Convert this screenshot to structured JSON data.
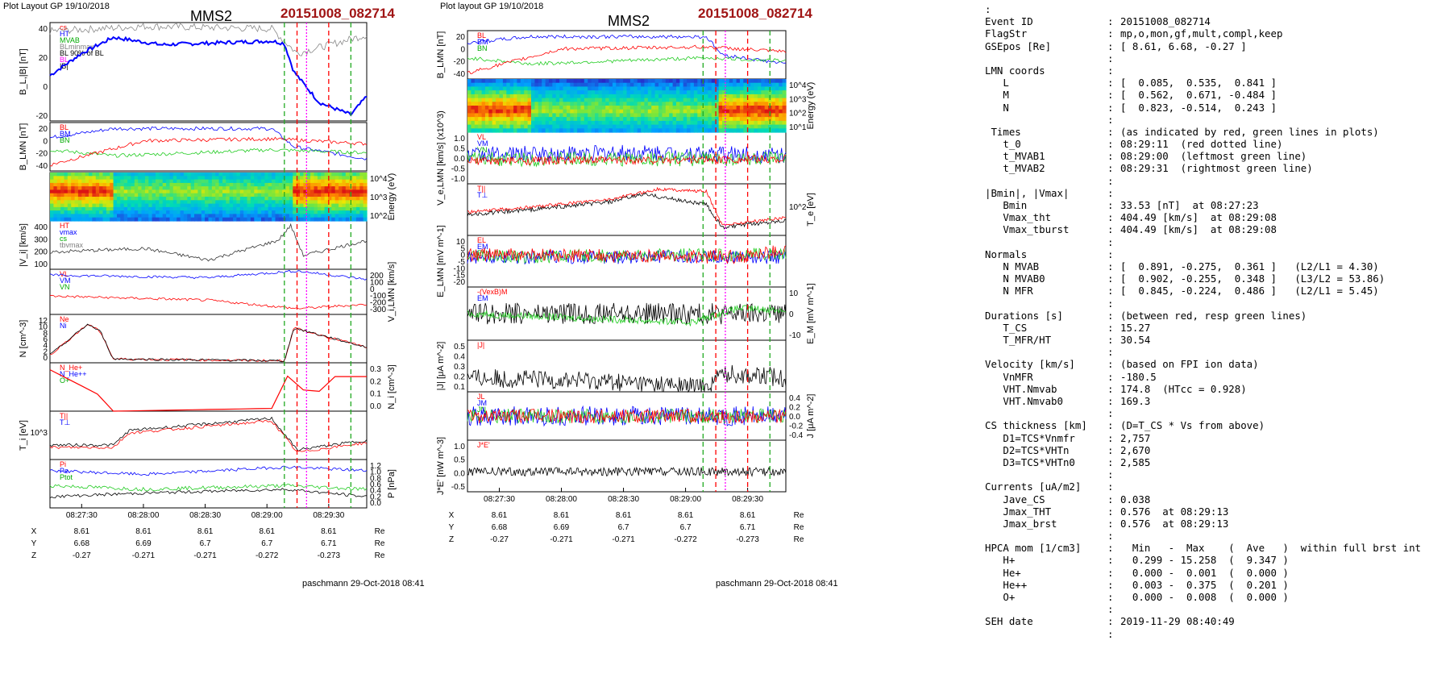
{
  "left": {
    "layout_label": "Plot Layout GP 19/10/2018",
    "title": "MMS2",
    "event": "20151008_082714",
    "footer": "paschmann 29-Oct-2018 08:41",
    "time_ticks": [
      "08:27:30",
      "08:28:00",
      "08:28:30",
      "08:29:00",
      "08:29:30"
    ],
    "panels": [
      {
        "id": "bl",
        "ylabel": "B_L,|B| [nT]",
        "yticks": [
          "40",
          "20",
          "0",
          "-20"
        ],
        "legend": [
          "cs",
          "HT",
          "MVAB",
          "BLminmax",
          "BL 90% of BL",
          "BL",
          "|B|"
        ]
      },
      {
        "id": "blmn",
        "ylabel": "B_LMN [nT]",
        "yticks": [
          "20",
          "0",
          "-20",
          "-40"
        ],
        "legend": [
          "BL",
          "BM",
          "BN"
        ]
      },
      {
        "id": "ispec",
        "ylabel": "Energy (eV)",
        "yticks": [
          "10^4",
          "10^3",
          "10^2"
        ]
      },
      {
        "id": "vi",
        "ylabel": "|V_i| [km/s]",
        "yticks": [
          "400",
          "300",
          "200",
          "100"
        ],
        "legend": [
          "HT",
          "vmax",
          "cs",
          "tbvmax"
        ]
      },
      {
        "id": "vilmn",
        "ylabel": "V_i,LMN [km/s]",
        "yticks": [
          "200",
          "100",
          "0",
          "-100",
          "-200",
          "-300"
        ],
        "legend": [
          "VL",
          "VM",
          "VN"
        ]
      },
      {
        "id": "n",
        "ylabel": "N [cm^-3]",
        "yticks": [
          "12",
          "10",
          "8",
          "6",
          "4",
          "2",
          "0"
        ],
        "legend": [
          "Ne",
          "Ni"
        ]
      },
      {
        "id": "ni",
        "ylabel": "N_i [cm^-3]",
        "yticks": [
          "0.3",
          "0.2",
          "0.1",
          "0.0"
        ],
        "legend": [
          "N_He+",
          "N_He++",
          "O+"
        ]
      },
      {
        "id": "ti",
        "ylabel": "T_i [eV]",
        "yticks": [
          "10^3"
        ],
        "legend": [
          "T||",
          "T⊥"
        ]
      },
      {
        "id": "p",
        "ylabel": "P [nPa]",
        "yticks": [
          "1.2",
          "1.0",
          "0.8",
          "0.6",
          "0.4",
          "0.2",
          "0.0"
        ],
        "legend": [
          "Pi",
          "Pe",
          "Ptot"
        ]
      }
    ],
    "pos_rows": [
      {
        "label": "X",
        "values": [
          "8.61",
          "8.61",
          "8.61",
          "8.61",
          "8.61"
        ],
        "unit": "Re"
      },
      {
        "label": "Y",
        "values": [
          "6.68",
          "6.69",
          "6.7",
          "6.7",
          "6.71"
        ],
        "unit": "Re"
      },
      {
        "label": "Z",
        "values": [
          "-0.27",
          "-0.271",
          "-0.271",
          "-0.272",
          "-0.273"
        ],
        "unit": "Re"
      }
    ]
  },
  "middle": {
    "layout_label": "Plot layout GP 19/10/2018",
    "title": "MMS2",
    "event": "20151008_082714",
    "footer": "paschmann 29-Oct-2018 08:41",
    "time_ticks": [
      "08:27:30",
      "08:28:00",
      "08:28:30",
      "08:29:00",
      "08:29:30"
    ],
    "panels": [
      {
        "id": "blmn",
        "ylabel": "B_LMN [nT]",
        "yticks": [
          "20",
          "0",
          "-20",
          "-40"
        ],
        "legend": [
          "BL",
          "BM",
          "BN"
        ]
      },
      {
        "id": "espec",
        "ylabel": "Energy (eV)",
        "yticks": [
          "10^4",
          "10^3",
          "10^2",
          "10^1"
        ]
      },
      {
        "id": "velmn",
        "ylabel": "V_e,LMN [km/s] (x10^3)",
        "yticks": [
          "1.0",
          "0.5",
          "0.0",
          "-0.5",
          "-1.0"
        ],
        "legend": [
          "VL",
          "VM",
          "VN"
        ]
      },
      {
        "id": "te",
        "ylabel": "T_e [eV]",
        "yticks": [
          "10^2"
        ],
        "legend": [
          "T||",
          "T⊥"
        ]
      },
      {
        "id": "elmn",
        "ylabel": "E_LMN [mV m^-1]",
        "yticks": [
          "10",
          "5",
          "0",
          "-5",
          "-10",
          "-15",
          "-20"
        ],
        "legend": [
          "EL",
          "EM",
          "EN"
        ]
      },
      {
        "id": "em",
        "ylabel": "E_M [mV m^-1]",
        "yticks": [
          "10",
          "0",
          "-10"
        ],
        "legend": [
          "-(VexB)M",
          "EM"
        ]
      },
      {
        "id": "j",
        "ylabel": "|J| [μA m^-2]",
        "yticks": [
          "0.5",
          "0.4",
          "0.3",
          "0.2",
          "0.1"
        ],
        "legend": [
          "|J|"
        ]
      },
      {
        "id": "jlmn",
        "ylabel": "J [μA m^-2]",
        "yticks": [
          "0.4",
          "0.2",
          "0.0",
          "-0.2",
          "-0.4"
        ],
        "legend": [
          "JL",
          "JM",
          "JN"
        ]
      },
      {
        "id": "je",
        "ylabel": "J*E' [nW m^-3]",
        "yticks": [
          "1.0",
          "0.5",
          "0.0",
          "-0.5"
        ],
        "legend": [
          "J*E'"
        ]
      }
    ],
    "pos_rows": [
      {
        "label": "X",
        "values": [
          "8.61",
          "8.61",
          "8.61",
          "8.61",
          "8.61"
        ],
        "unit": "Re"
      },
      {
        "label": "Y",
        "values": [
          "6.68",
          "6.69",
          "6.7",
          "6.7",
          "6.71"
        ],
        "unit": "Re"
      },
      {
        "label": "Z",
        "values": [
          "-0.27",
          "-0.271",
          "-0.271",
          "-0.272",
          "-0.273"
        ],
        "unit": "Re"
      }
    ]
  },
  "info_lines": [
    {
      "l": ":",
      "v": ""
    },
    {
      "l": "Event ID",
      "v": "20151008_082714"
    },
    {
      "l": "FlagStr",
      "v": "mp,o,mon,gf,mult,compl,keep"
    },
    {
      "l": "GSEpos [Re]",
      "v": "[ 8.61, 6.68, -0.27 ]"
    },
    {
      "l": "",
      "v": ""
    },
    {
      "l": "LMN coords",
      "v": ""
    },
    {
      "l": "   L",
      "v": "[  0.085,  0.535,  0.841 ]"
    },
    {
      "l": "   M",
      "v": "[  0.562,  0.671, -0.484 ]"
    },
    {
      "l": "   N",
      "v": "[  0.823, -0.514,  0.243 ]"
    },
    {
      "l": "",
      "v": ""
    },
    {
      "l": " Times",
      "v": "(as indicated by red, green lines in plots)"
    },
    {
      "l": "   t_0",
      "v": "08:29:11  (red dotted line)"
    },
    {
      "l": "   t_MVAB1",
      "v": "08:29:00  (leftmost green line)"
    },
    {
      "l": "   t_MVAB2",
      "v": "08:29:31  (rightmost green line)"
    },
    {
      "l": "",
      "v": ""
    },
    {
      "l": "|Bmin|, |Vmax|",
      "v": ""
    },
    {
      "l": "   Bmin",
      "v": "33.53 [nT]  at 08:27:23"
    },
    {
      "l": "   Vmax_tht",
      "v": "404.49 [km/s]  at 08:29:08"
    },
    {
      "l": "   Vmax_tburst",
      "v": "404.49 [km/s]  at 08:29:08"
    },
    {
      "l": "",
      "v": ""
    },
    {
      "l": "Normals",
      "v": ""
    },
    {
      "l": "   N MVAB",
      "v": "[  0.891, -0.275,  0.361 ]   (L2/L1 = 4.30)"
    },
    {
      "l": "   N MVAB0",
      "v": "[  0.902, -0.255,  0.348 ]   (L3/L2 = 53.86)"
    },
    {
      "l": "   N MFR",
      "v": "[  0.845, -0.224,  0.486 ]   (L2/L1 = 5.45)"
    },
    {
      "l": "",
      "v": ""
    },
    {
      "l": "Durations [s]",
      "v": "(between red, resp green lines)"
    },
    {
      "l": "   T_CS",
      "v": "15.27"
    },
    {
      "l": "   T_MFR/HT",
      "v": "30.54"
    },
    {
      "l": "",
      "v": ""
    },
    {
      "l": "Velocity [km/s]",
      "v": "(based on FPI ion data)"
    },
    {
      "l": "   VnMFR",
      "v": "-180.5"
    },
    {
      "l": "   VHT.Nmvab",
      "v": "174.8  (HTcc = 0.928)"
    },
    {
      "l": "   VHT.Nmvab0",
      "v": "169.3"
    },
    {
      "l": "",
      "v": ""
    },
    {
      "l": "CS thickness [km]",
      "v": "(D=T_CS * Vs from above)"
    },
    {
      "l": "   D1=TCS*Vnmfr",
      "v": "2,757"
    },
    {
      "l": "   D2=TCS*VHTn",
      "v": "2,670"
    },
    {
      "l": "   D3=TCS*VHTn0",
      "v": "2,585"
    },
    {
      "l": "",
      "v": ""
    },
    {
      "l": "Currents [uA/m2]",
      "v": ""
    },
    {
      "l": "   Jave_CS",
      "v": "0.038"
    },
    {
      "l": "   Jmax_THT",
      "v": "0.576  at 08:29:13"
    },
    {
      "l": "   Jmax_brst",
      "v": "0.576  at 08:29:13"
    },
    {
      "l": "",
      "v": ""
    },
    {
      "l": "HPCA mom [1/cm3]",
      "v": "  Min   -  Max    (  Ave   )  within full brst int"
    },
    {
      "l": "   H+",
      "v": "  0.299 - 15.258  (  9.347 )"
    },
    {
      "l": "   He+",
      "v": "  0.000 -  0.001  (  0.000 )"
    },
    {
      "l": "   He++",
      "v": "  0.003 -  0.375  (  0.201 )"
    },
    {
      "l": "   O+",
      "v": "  0.000 -  0.008  (  0.000 )"
    },
    {
      "l": "",
      "v": ""
    },
    {
      "l": "SEH date",
      "v": "2019-11-29 08:40:49"
    },
    {
      "l": "",
      "v": ""
    }
  ],
  "chart_data": [
    {
      "type": "line",
      "panel": "left-bl",
      "title": "MMS2",
      "x_range": [
        "08:27:14",
        "08:29:45"
      ],
      "series": [
        {
          "name": "BL",
          "color": "#0000ff",
          "approx": [
            [
              0,
              2
            ],
            [
              0.1,
              20
            ],
            [
              0.2,
              33
            ],
            [
              0.35,
              27
            ],
            [
              0.7,
              30
            ],
            [
              0.74,
              28
            ],
            [
              0.77,
              5
            ],
            [
              0.85,
              -20
            ],
            [
              0.95,
              -30
            ],
            [
              1,
              -15
            ]
          ]
        },
        {
          "name": "|B|",
          "color": "#808080",
          "approx": [
            [
              0,
              38
            ],
            [
              0.3,
              42
            ],
            [
              0.7,
              40
            ],
            [
              0.78,
              20
            ],
            [
              1,
              35
            ]
          ]
        }
      ]
    },
    {
      "type": "heatmap",
      "panel": "left-ispec",
      "ylabel": "Energy (eV)"
    },
    {
      "type": "line",
      "panel": "left-vi",
      "series": [
        {
          "name": "|Vi|",
          "color": "#000000",
          "approx": [
            [
              0,
              150
            ],
            [
              0.3,
              180
            ],
            [
              0.5,
              80
            ],
            [
              0.72,
              250
            ],
            [
              0.76,
              380
            ],
            [
              0.8,
              120
            ],
            [
              1,
              250
            ]
          ]
        }
      ]
    },
    {
      "type": "line",
      "panel": "left-n",
      "series": [
        {
          "name": "Ne",
          "color": "#ff0000",
          "approx": [
            [
              0,
              2
            ],
            [
              0.12,
              10
            ],
            [
              0.16,
              8
            ],
            [
              0.2,
              1
            ],
            [
              0.74,
              0.5
            ],
            [
              0.77,
              9
            ],
            [
              1,
              4
            ]
          ]
        },
        {
          "name": "Ni",
          "color": "#000000",
          "approx": [
            [
              0,
              2
            ],
            [
              0.12,
              10
            ],
            [
              0.16,
              8
            ],
            [
              0.2,
              1
            ],
            [
              0.74,
              0.5
            ],
            [
              0.77,
              9
            ],
            [
              1,
              4
            ]
          ]
        }
      ]
    },
    {
      "type": "line",
      "panel": "left-ni",
      "series": [
        {
          "name": "N_He++",
          "color": "#ff0000",
          "approx": [
            [
              0,
              0.3
            ],
            [
              0.17,
              0.1
            ],
            [
              0.2,
              0
            ],
            [
              0.7,
              0.02
            ],
            [
              0.76,
              0.3
            ],
            [
              0.82,
              0.08
            ],
            [
              0.9,
              0.25
            ]
          ]
        }
      ]
    },
    {
      "type": "heatmap",
      "panel": "middle-espec",
      "ylabel": "Energy (eV)"
    },
    {
      "type": "line",
      "panel": "middle-te",
      "series": [
        {
          "name": "T||",
          "color": "#ff0000"
        },
        {
          "name": "T⊥",
          "color": "#000000"
        }
      ]
    },
    {
      "type": "line",
      "panel": "middle-j",
      "series": [
        {
          "name": "|J|",
          "color": "#000000"
        }
      ]
    }
  ]
}
